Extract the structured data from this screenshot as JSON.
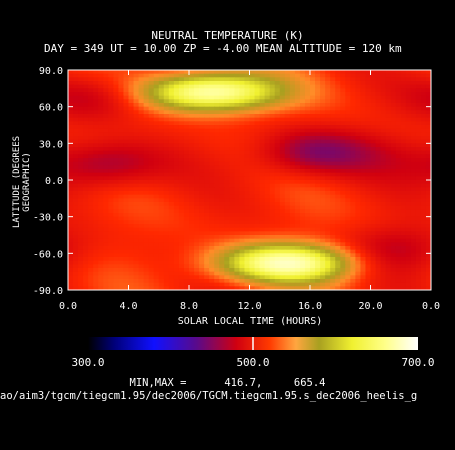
{
  "chart_data": {
    "type": "heatmap",
    "title": "NEUTRAL TEMPERATURE (K)",
    "subtitle": "DAY = 349   UT = 10.00   ZP =  -4.00   MEAN ALTITUDE = 120 km",
    "xlabel": "SOLAR LOCAL TIME (HOURS)",
    "ylabel": "LATITUDE (DEGREES GEOGRAPHIC)",
    "xlim": [
      0.0,
      24.0
    ],
    "ylim": [
      -90.0,
      90.0
    ],
    "x_ticks": [
      "0.0",
      "4.0",
      "8.0",
      "12.0",
      "16.0",
      "20.0",
      "0.0"
    ],
    "y_ticks": [
      "90.0",
      "60.0",
      "30.0",
      "0.0",
      "-30.0",
      "-60.0",
      "-90.0"
    ],
    "colorbar": {
      "min": 300.0,
      "max": 700.0,
      "mid_tick": 500.0,
      "labels": [
        "300.0",
        "500.0",
        "700.0"
      ]
    },
    "min_max_label": "MIN,MAX =",
    "min": "416.7,",
    "max": "665.4",
    "features": [
      {
        "x": 9.5,
        "y": 72,
        "value": 665
      },
      {
        "x": 14.5,
        "y": -68,
        "value": 660
      },
      {
        "x": 16.0,
        "y": 22,
        "value": 420
      },
      {
        "x": 2.5,
        "y": 12,
        "value": 425
      },
      {
        "x": 21.5,
        "y": -58,
        "value": 440
      },
      {
        "x": 2.0,
        "y": 68,
        "value": 440
      },
      {
        "x": 21.0,
        "y": 22,
        "value": 470
      }
    ]
  },
  "file_path": "ao/aim3/tgcm/tiegcm1.95/dec2006/TGCM.tiegcm1.95.s_dec2006_heelis_g",
  "colors": {
    "background": "#000000",
    "text": "#ffffff"
  }
}
